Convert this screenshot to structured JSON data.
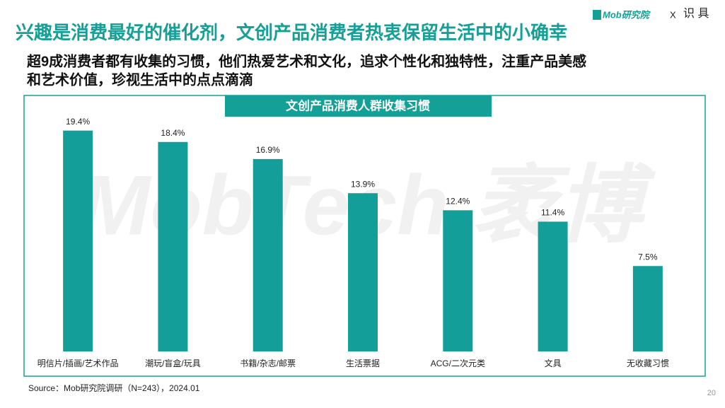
{
  "header": {
    "title": "兴趣是消费最好的催化剂，文创产品消费者热衷保留生活中的小确幸",
    "subtitle_lines": [
      "超9成消费者都有收集的习惯，他们热爱艺术和文化，追求个性化和独特性，注重产品美感",
      "和艺术价值，珍视生活中的点点滴滴"
    ],
    "logo": "Mob研究院",
    "logo_x": "X",
    "partner": "识 具"
  },
  "chart_data": {
    "type": "bar",
    "title": "文创产品消费人群收集习惯",
    "categories": [
      "明信片/插画/艺术作品",
      "潮玩/盲盒/玩具",
      "书籍/杂志/邮票",
      "生活票据",
      "ACG/二次元类",
      "文具",
      "无收藏习惯"
    ],
    "values": [
      19.4,
      18.4,
      16.9,
      13.9,
      12.4,
      11.4,
      7.5
    ],
    "value_labels": [
      "19.4%",
      "18.4%",
      "16.9%",
      "13.9%",
      "12.4%",
      "11.4%",
      "7.5%"
    ],
    "color": "#139e99"
  },
  "footer": {
    "source": "Source：Mob研究院调研（N=243），2024.01",
    "page": "20"
  },
  "watermark": "MobTech 袤博"
}
